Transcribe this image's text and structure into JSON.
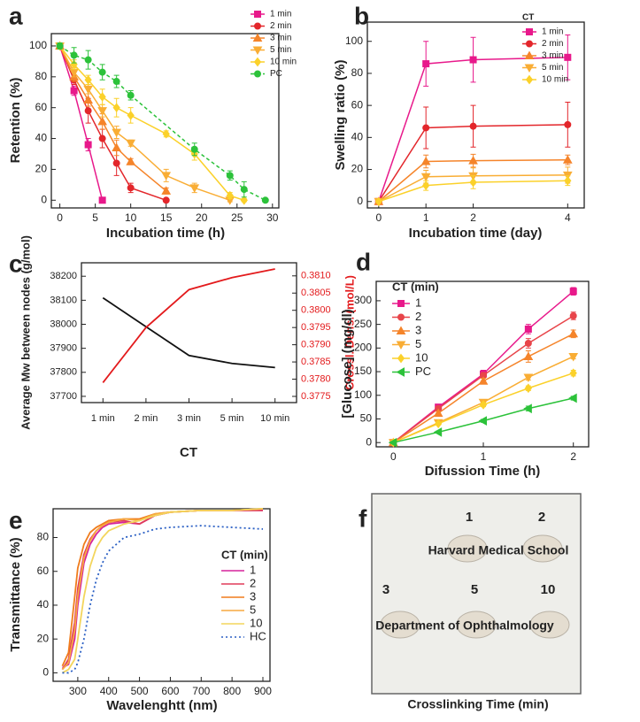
{
  "chart_data": [
    {
      "type": "line",
      "panel": "a",
      "xlabel": "Incubation time (h)",
      "ylabel": "Retention (%)",
      "xlim": [
        -1.2,
        30.9
      ],
      "xticks": [
        0,
        5,
        10,
        15,
        20,
        25,
        30
      ],
      "ylim": [
        -5,
        108
      ],
      "yticks": [
        0,
        20,
        40,
        60,
        80,
        100
      ],
      "legend": "upper right",
      "series": [
        {
          "name": "1 min",
          "color": "#e8198b",
          "marker": "square",
          "x": [
            0,
            2,
            4,
            6
          ],
          "values": [
            100,
            71,
            36,
            0
          ],
          "errors": [
            2,
            3,
            4,
            0
          ]
        },
        {
          "name": "2 min",
          "color": "#e3262b",
          "marker": "circle",
          "x": [
            0,
            2,
            4,
            6,
            8,
            10,
            15
          ],
          "values": [
            100,
            78,
            58,
            40,
            24,
            8,
            0
          ],
          "errors": [
            2,
            3,
            8,
            6,
            8,
            3,
            0
          ]
        },
        {
          "name": "3 min",
          "color": "#f5842a",
          "marker": "triangle-up",
          "x": [
            0,
            2,
            4,
            6,
            8,
            10,
            15
          ],
          "values": [
            100,
            80,
            65,
            51,
            34,
            25,
            6
          ],
          "errors": [
            2,
            3,
            4,
            5,
            5,
            2,
            2
          ]
        },
        {
          "name": "5 min",
          "color": "#f9ad34",
          "marker": "triangle-down",
          "x": [
            0,
            2,
            4,
            6,
            8,
            10,
            15,
            19,
            24
          ],
          "values": [
            100,
            83,
            72,
            58,
            44,
            37,
            16,
            8,
            0
          ],
          "errors": [
            2,
            3,
            3,
            4,
            4,
            2,
            4,
            3,
            1
          ]
        },
        {
          "name": "10 min",
          "color": "#fbd12a",
          "marker": "diamond",
          "x": [
            0,
            2,
            4,
            6,
            8,
            10,
            15,
            19,
            24,
            26
          ],
          "values": [
            100,
            88,
            78,
            67,
            60,
            55,
            43,
            30,
            3,
            0
          ],
          "errors": [
            2,
            3,
            3,
            5,
            6,
            5,
            2,
            4,
            2,
            1
          ]
        },
        {
          "name": "PC",
          "color": "#2cc23a",
          "marker": "circle",
          "dash": true,
          "x": [
            0,
            2,
            4,
            6,
            8,
            10,
            19,
            24,
            26,
            29
          ],
          "values": [
            100,
            94,
            91,
            83,
            77,
            68,
            33,
            16,
            7,
            0
          ],
          "errors": [
            2,
            5,
            6,
            5,
            4,
            3,
            4,
            3,
            5,
            1
          ]
        }
      ]
    },
    {
      "type": "line",
      "panel": "b",
      "xlabel": "Incubation time (day)",
      "ylabel": "Swelling ratio (%)",
      "x": [
        0,
        1,
        2,
        4
      ],
      "xlim": [
        -0.24,
        4.35
      ],
      "xticks": [
        0,
        1,
        2,
        4
      ],
      "ylim": [
        -4,
        112
      ],
      "yticks": [
        0,
        20,
        40,
        60,
        80,
        100
      ],
      "legend": "upper right",
      "legend_title": "CT",
      "series": [
        {
          "name": "1 min",
          "color": "#e8198b",
          "marker": "square",
          "values": [
            0,
            86,
            88.5,
            90
          ],
          "errors": [
            0,
            14,
            14,
            14
          ]
        },
        {
          "name": "2 min",
          "color": "#e3262b",
          "marker": "circle",
          "values": [
            0,
            46,
            47,
            48
          ],
          "errors": [
            0,
            13,
            13,
            14
          ]
        },
        {
          "name": "3 min",
          "color": "#f5842a",
          "marker": "triangle-up",
          "values": [
            0,
            25,
            25.5,
            26
          ],
          "errors": [
            0,
            4,
            4,
            3
          ]
        },
        {
          "name": "5 min",
          "color": "#f9ad34",
          "marker": "triangle-down",
          "values": [
            0,
            15.5,
            16,
            16.5
          ],
          "errors": [
            0,
            4,
            5,
            5
          ]
        },
        {
          "name": "10 min",
          "color": "#fbd12a",
          "marker": "diamond",
          "values": [
            0,
            10,
            12,
            13
          ],
          "errors": [
            0,
            3,
            4,
            3
          ]
        }
      ]
    },
    {
      "type": "line",
      "panel": "c",
      "xlabel": "CT",
      "ylabel": "Average Mw between nodes (g/mol)",
      "y2label": "Crossl. Dens. (mol/L)",
      "categories": [
        "1 min",
        "2 min",
        "3 min",
        "5 min",
        "10 min"
      ],
      "ylim": [
        37674,
        38256
      ],
      "yticks": [
        37700,
        37800,
        37900,
        38000,
        38100,
        38200
      ],
      "y2lim": [
        0.37732,
        0.38138
      ],
      "y2ticks": [
        0.3775,
        {
          "value": 0.378,
          "label": "0.3780"
        },
        0.3785,
        {
          "value": 0.379,
          "label": "0.3790"
        },
        0.3795,
        {
          "value": 0.38,
          "label": "0.3800"
        },
        0.3805,
        {
          "value": 0.381,
          "label": "0.3810"
        }
      ],
      "series": [
        {
          "color": "#111111",
          "values": [
            38110,
            37990,
            37870,
            37837,
            37820
          ]
        },
        {
          "color": "#e31a1c",
          "axis": "y2",
          "values": [
            0.3779,
            0.3795,
            0.3806,
            0.38095,
            0.3812
          ]
        }
      ]
    },
    {
      "type": "line",
      "panel": "d",
      "xlabel": "Difussion Time (h)",
      "ylabel": "[Glucose] (mg/dl)",
      "x": [
        0,
        0.5,
        1,
        1.5,
        2
      ],
      "xlim": [
        -0.19,
        2.17
      ],
      "xticks": [
        0,
        1,
        2
      ],
      "ylim": [
        -9,
        341
      ],
      "yticks": [
        0,
        50,
        100,
        150,
        200,
        250,
        300
      ],
      "legend": "upper left",
      "legend_title": "CT (min)",
      "series": [
        {
          "name": "1",
          "color": "#e8198b",
          "marker": "square",
          "values": [
            0,
            75,
            145,
            240,
            320
          ],
          "errors": [
            0,
            5,
            8,
            10,
            8
          ]
        },
        {
          "name": "2",
          "color": "#e8454a",
          "marker": "circle",
          "values": [
            0,
            72,
            142,
            210,
            268
          ],
          "errors": [
            0,
            4,
            6,
            10,
            8
          ]
        },
        {
          "name": "3",
          "color": "#f5842a",
          "marker": "triangle-up",
          "values": [
            0,
            62,
            130,
            182,
            230
          ],
          "errors": [
            0,
            4,
            6,
            12,
            8
          ]
        },
        {
          "name": "5",
          "color": "#f9ad34",
          "marker": "triangle-down",
          "values": [
            0,
            42,
            85,
            138,
            182
          ],
          "errors": [
            0,
            3,
            5,
            6,
            5
          ]
        },
        {
          "name": "10",
          "color": "#fbd12a",
          "marker": "diamond",
          "values": [
            0,
            40,
            80,
            115,
            147
          ],
          "errors": [
            0,
            3,
            4,
            5,
            6
          ]
        },
        {
          "name": "PC",
          "color": "#2cc23a",
          "marker": "triangle-left",
          "values": [
            0,
            22,
            46,
            72,
            94
          ],
          "errors": [
            0,
            2,
            3,
            5,
            4
          ]
        }
      ]
    },
    {
      "type": "line",
      "panel": "e",
      "xlabel": "Wavelenghtt (nm)",
      "ylabel": "Transmittance (%)",
      "x": [
        250,
        270,
        290,
        300,
        320,
        340,
        360,
        380,
        400,
        450,
        500,
        550,
        600,
        700,
        800,
        900
      ],
      "xlim": [
        220,
        923
      ],
      "xticks": [
        300,
        400,
        500,
        600,
        700,
        800,
        900
      ],
      "ylim": [
        -5,
        97
      ],
      "yticks": [
        0,
        20,
        40,
        60,
        80
      ],
      "legend": "center right",
      "legend_title": "CT (min)",
      "series": [
        {
          "name": "1",
          "color": "#d6249b",
          "values": [
            3,
            5,
            20,
            40,
            65,
            76,
            82,
            86,
            88,
            89,
            88,
            93,
            95,
            96,
            96,
            96
          ]
        },
        {
          "name": "2",
          "color": "#e03c5a",
          "values": [
            2,
            8,
            30,
            50,
            70,
            79,
            84,
            87,
            89,
            90,
            88,
            93,
            95,
            96,
            96,
            96
          ]
        },
        {
          "name": "3",
          "color": "#f07c1c",
          "values": [
            4,
            12,
            45,
            62,
            76,
            83,
            86,
            88,
            90,
            91,
            91,
            94,
            95,
            96,
            96,
            97
          ]
        },
        {
          "name": "5",
          "color": "#f7a940",
          "values": [
            2,
            6,
            25,
            45,
            68,
            78,
            84,
            87,
            89,
            91,
            90,
            94,
            95,
            96,
            96,
            97
          ]
        },
        {
          "name": "10",
          "color": "#f3d55c",
          "values": [
            0,
            2,
            8,
            20,
            45,
            63,
            74,
            80,
            84,
            88,
            90,
            93,
            95,
            96,
            96,
            97
          ]
        },
        {
          "name": "HC",
          "color": "#2a5fc4",
          "dash": true,
          "values": [
            0,
            0,
            2,
            6,
            20,
            40,
            55,
            65,
            72,
            80,
            82,
            85,
            86,
            87,
            86,
            85
          ]
        }
      ]
    }
  ],
  "photo": {
    "panel": "f",
    "labels": [
      "1",
      "2",
      "3",
      "5",
      "10"
    ],
    "texts": [
      "Harvard Medical School",
      "Department of Ophthalmology"
    ],
    "xlabel": "Crosslinking Time (min)"
  }
}
